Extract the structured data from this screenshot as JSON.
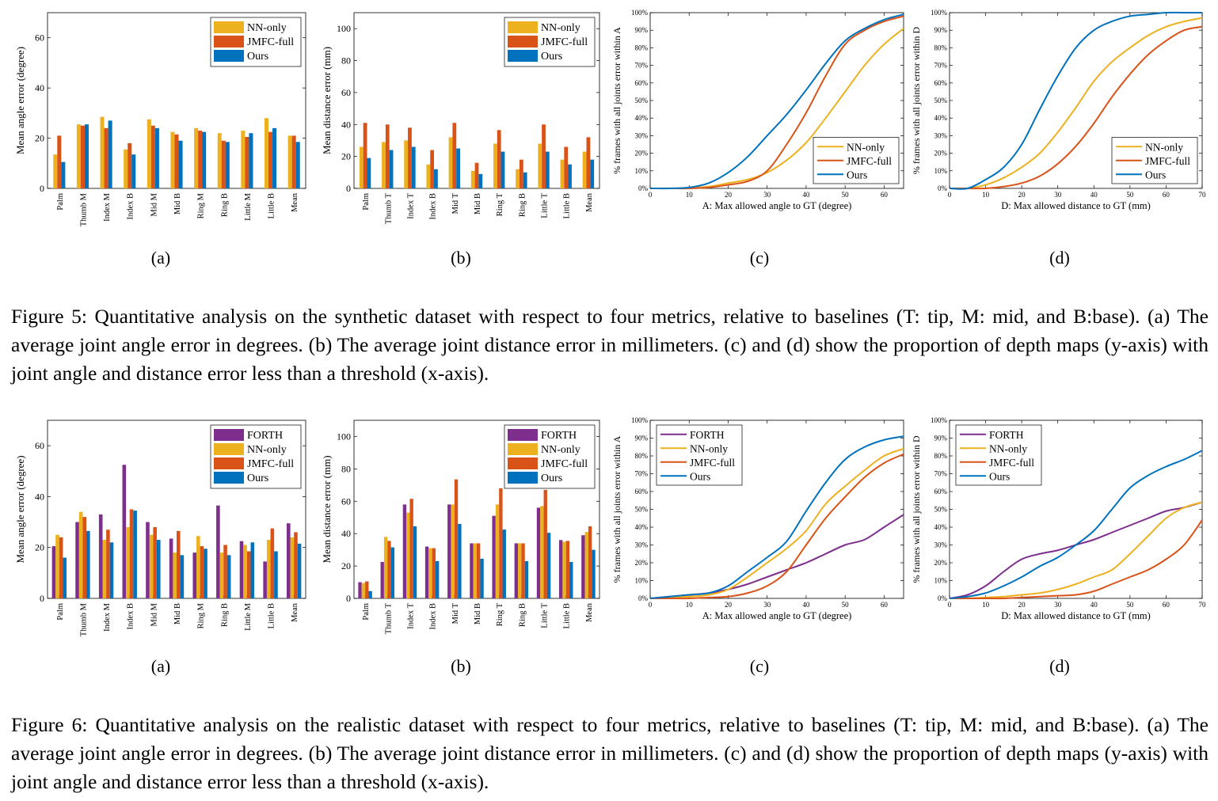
{
  "colors": {
    "FORTH": "#7e2f8e",
    "NN-only": "#edb120",
    "JMFC-full": "#d95319",
    "Ours": "#0072bd"
  },
  "figures": [
    {
      "caption": "Figure 5: Quantitative analysis on the synthetic dataset with respect to four metrics, relative to baselines (T: tip, M: mid, and B:base). (a) The average joint angle error in degrees. (b) The average joint distance error in millimeters. (c) and (d) show the proportion of depth maps (y-axis) with joint angle and distance error less than a threshold (x-axis).",
      "panels": [
        {
          "sublabel": "(a)",
          "chart_data": {
            "type": "bar",
            "xlabel": "",
            "ylabel": "Mean angle error (degree)",
            "ylim": [
              0,
              70
            ],
            "yticks": [
              0,
              20,
              40,
              60
            ],
            "categories": [
              "Palm",
              "Thumb M",
              "Index M",
              "Index B",
              "Mid M",
              "Mid B",
              "Ring M",
              "Ring B",
              "Little M",
              "Little B",
              "Mean"
            ],
            "legend_position": "top-right",
            "series": [
              {
                "name": "NN-only",
                "values": [
                  13.5,
                  25.5,
                  28.5,
                  15.5,
                  27.5,
                  22.5,
                  24,
                  22,
                  23,
                  28,
                  21
                ]
              },
              {
                "name": "JMFC-full",
                "values": [
                  21,
                  25,
                  24,
                  18,
                  25,
                  21.5,
                  23,
                  19,
                  20.5,
                  22.5,
                  21
                ]
              },
              {
                "name": "Ours",
                "values": [
                  10.5,
                  25.5,
                  27,
                  13.5,
                  24,
                  19,
                  22.5,
                  18.5,
                  22,
                  24,
                  18.5
                ]
              }
            ]
          }
        },
        {
          "sublabel": "(b)",
          "chart_data": {
            "type": "bar",
            "xlabel": "",
            "ylabel": "Mean distance error (mm)",
            "ylim": [
              0,
              110
            ],
            "yticks": [
              0,
              20,
              40,
              60,
              80,
              100
            ],
            "categories": [
              "Palm",
              "Thumb T",
              "Index T",
              "Index B",
              "Mid T",
              "Mid B",
              "Ring T",
              "Ring B",
              "Little T",
              "Little B",
              "Mean"
            ],
            "legend_position": "top-right",
            "series": [
              {
                "name": "NN-only",
                "values": [
                  26,
                  29,
                  30,
                  15,
                  32,
                  11,
                  28,
                  12,
                  28,
                  18,
                  23
                ]
              },
              {
                "name": "JMFC-full",
                "values": [
                  41,
                  40,
                  38,
                  24,
                  41,
                  16,
                  36.5,
                  18,
                  40,
                  26,
                  32
                ]
              },
              {
                "name": "Ours",
                "values": [
                  19,
                  24,
                  26,
                  12,
                  25,
                  9,
                  23,
                  10,
                  23,
                  15,
                  18
                ]
              }
            ]
          }
        },
        {
          "sublabel": "(c)",
          "chart_data": {
            "type": "line",
            "xlabel": "A: Max allowed angle to GT (degree)",
            "ylabel": "% frames with all joints error within A",
            "xlim": [
              0,
              65
            ],
            "ylim": [
              0,
              100
            ],
            "xticks": [
              0,
              10,
              20,
              30,
              40,
              50,
              60
            ],
            "yticks": [
              "0%",
              "10%",
              "20%",
              "30%",
              "40%",
              "50%",
              "60%",
              "70%",
              "80%",
              "90%",
              "100%"
            ],
            "legend_position": "bottom-right",
            "x": [
              0,
              5,
              10,
              15,
              20,
              25,
              30,
              35,
              40,
              45,
              50,
              55,
              60,
              65
            ],
            "series": [
              {
                "name": "NN-only",
                "values": [
                  0,
                  0,
                  0.2,
                  1,
                  3,
                  5,
                  9,
                  16,
                  26,
                  40,
                  55,
                  70,
                  82,
                  91
                ]
              },
              {
                "name": "JMFC-full",
                "values": [
                  0,
                  0,
                  0,
                  0.5,
                  2,
                  4,
                  10,
                  25,
                  43,
                  64,
                  82,
                  90,
                  95,
                  98
                ]
              },
              {
                "name": "Ours",
                "values": [
                  0,
                  0,
                  0.5,
                  3,
                  9,
                  18,
                  30,
                  42,
                  56,
                  71,
                  84,
                  91,
                  96,
                  99
                ]
              }
            ]
          }
        },
        {
          "sublabel": "(d)",
          "chart_data": {
            "type": "line",
            "xlabel": "D: Max allowed distance to GT (mm)",
            "ylabel": "% frames with all joints error within D",
            "xlim": [
              0,
              70
            ],
            "ylim": [
              0,
              100
            ],
            "xticks": [
              0,
              10,
              20,
              30,
              40,
              50,
              60,
              70
            ],
            "yticks": [
              "0%",
              "10%",
              "20%",
              "30%",
              "40%",
              "50%",
              "60%",
              "70%",
              "80%",
              "90%",
              "100%"
            ],
            "legend_position": "bottom-right",
            "x": [
              0,
              5,
              10,
              15,
              20,
              25,
              30,
              35,
              40,
              45,
              50,
              55,
              60,
              65,
              70
            ],
            "series": [
              {
                "name": "NN-only",
                "values": [
                  0,
                  0,
                  2,
                  6,
                  12,
                  20,
                  32,
                  46,
                  61,
                  72,
                  80,
                  87,
                  92,
                  95,
                  97
                ]
              },
              {
                "name": "JMFC-full",
                "values": [
                  0,
                  0,
                  0,
                  1,
                  3,
                  7,
                  14,
                  24,
                  37,
                  52,
                  65,
                  76,
                  84,
                  90,
                  92
                ]
              },
              {
                "name": "Ours",
                "values": [
                  0,
                  0,
                  5,
                  12,
                  25,
                  45,
                  64,
                  80,
                  90,
                  95,
                  98,
                  99,
                  100,
                  100,
                  100
                ]
              }
            ]
          }
        }
      ]
    },
    {
      "caption": "Figure 6: Quantitative analysis on the realistic dataset with respect to four metrics, relative to baselines (T: tip, M: mid, and B:base). (a) The average joint angle error in degrees. (b) The average joint distance error in millimeters. (c) and (d) show the proportion of depth maps (y-axis) with joint angle and distance error less than a threshold (x-axis).",
      "panels": [
        {
          "sublabel": "(a)",
          "chart_data": {
            "type": "bar",
            "xlabel": "",
            "ylabel": "Mean angle error (degree)",
            "ylim": [
              0,
              70
            ],
            "yticks": [
              0,
              20,
              40,
              60
            ],
            "categories": [
              "Palm",
              "Thumb M",
              "Index M",
              "Index B",
              "Mid M",
              "Mid B",
              "Ring M",
              "Ring B",
              "Little M",
              "Little B",
              "Mean"
            ],
            "legend_position": "top-right",
            "series": [
              {
                "name": "FORTH",
                "values": [
                  20.5,
                  30,
                  33,
                  52.5,
                  30,
                  23.5,
                  18,
                  36.5,
                  22.5,
                  14.5,
                  29.5
                ]
              },
              {
                "name": "NN-only",
                "values": [
                  25,
                  34,
                  23,
                  28,
                  25,
                  18,
                  24.5,
                  18,
                  21,
                  23,
                  24
                ]
              },
              {
                "name": "JMFC-full",
                "values": [
                  24,
                  32,
                  27,
                  35,
                  28,
                  26.5,
                  20.5,
                  21,
                  18.5,
                  27.5,
                  26
                ]
              },
              {
                "name": "Ours",
                "values": [
                  16,
                  26.5,
                  22,
                  34.5,
                  23,
                  17,
                  19.5,
                  17,
                  22,
                  18.5,
                  21.5
                ]
              }
            ]
          }
        },
        {
          "sublabel": "(b)",
          "chart_data": {
            "type": "bar",
            "xlabel": "",
            "ylabel": "Mean distance error (mm)",
            "ylim": [
              0,
              110
            ],
            "yticks": [
              0,
              20,
              40,
              60,
              80,
              100
            ],
            "categories": [
              "Palm",
              "Thumb T",
              "Index T",
              "Index B",
              "Mid T",
              "Mid B",
              "Ring T",
              "Ring B",
              "Little T",
              "Little B",
              "Mean"
            ],
            "legend_position": "top-right",
            "series": [
              {
                "name": "FORTH",
                "values": [
                  10,
                  22.5,
                  58,
                  32,
                  58,
                  34,
                  51,
                  34,
                  56,
                  36,
                  39
                ]
              },
              {
                "name": "NN-only",
                "values": [
                  9.5,
                  38,
                  53,
                  31,
                  58,
                  34,
                  58,
                  34,
                  57,
                  35,
                  41
                ]
              },
              {
                "name": "JMFC-full",
                "values": [
                  10.5,
                  35.5,
                  61.5,
                  31,
                  73.5,
                  34,
                  68,
                  34,
                  67,
                  35.5,
                  44.5
                ]
              },
              {
                "name": "Ours",
                "values": [
                  4.5,
                  31.5,
                  44.5,
                  23,
                  46,
                  24.5,
                  42.5,
                  23,
                  40.5,
                  22.5,
                  30
                ]
              }
            ]
          }
        },
        {
          "sublabel": "(c)",
          "chart_data": {
            "type": "line",
            "xlabel": "A: Max allowed angle to GT (degree)",
            "ylabel": "% frames with all joints error within A",
            "xlim": [
              0,
              65
            ],
            "ylim": [
              0,
              100
            ],
            "xticks": [
              0,
              10,
              20,
              30,
              40,
              50,
              60
            ],
            "yticks": [
              "0%",
              "10%",
              "20%",
              "30%",
              "40%",
              "50%",
              "60%",
              "70%",
              "80%",
              "90%",
              "100%"
            ],
            "legend_position": "top-left",
            "x": [
              0,
              5,
              10,
              15,
              20,
              25,
              30,
              35,
              40,
              45,
              50,
              55,
              60,
              65
            ],
            "series": [
              {
                "name": "FORTH",
                "values": [
                  0,
                  1,
                  2,
                  3,
                  5,
                  8,
                  12,
                  16,
                  20,
                  25,
                  30,
                  33,
                  40,
                  47
                ]
              },
              {
                "name": "NN-only",
                "values": [
                  0,
                  0.5,
                  1,
                  2,
                  5,
                  12,
                  20,
                  28,
                  38,
                  53,
                  63,
                  72,
                  80,
                  84
                ]
              },
              {
                "name": "JMFC-full",
                "values": [
                  0,
                  0,
                  0,
                  0.5,
                  1,
                  3,
                  7,
                  15,
                  30,
                  45,
                  57,
                  68,
                  76,
                  81
                ]
              },
              {
                "name": "Ours",
                "values": [
                  0,
                  1,
                  2,
                  3,
                  7,
                  15,
                  23,
                  32,
                  49,
                  65,
                  78,
                  85,
                  89,
                  91
                ]
              }
            ]
          }
        },
        {
          "sublabel": "(d)",
          "chart_data": {
            "type": "line",
            "xlabel": "D: Max allowed distance to GT (mm)",
            "ylabel": "% frames with all joints error within D",
            "xlim": [
              0,
              70
            ],
            "ylim": [
              0,
              100
            ],
            "xticks": [
              0,
              10,
              20,
              30,
              40,
              50,
              60,
              70
            ],
            "yticks": [
              "0%",
              "10%",
              "20%",
              "30%",
              "40%",
              "50%",
              "60%",
              "70%",
              "80%",
              "90%",
              "100%"
            ],
            "legend_position": "top-left",
            "x": [
              0,
              5,
              10,
              15,
              20,
              25,
              30,
              35,
              40,
              45,
              50,
              55,
              60,
              65,
              70
            ],
            "series": [
              {
                "name": "FORTH",
                "values": [
                  0,
                  2,
                  7,
                  15,
                  22,
                  25,
                  27,
                  30,
                  33,
                  37,
                  41,
                  45,
                  49,
                  51,
                  54
                ]
              },
              {
                "name": "NN-only",
                "values": [
                  0,
                  0,
                  0.5,
                  1,
                  2,
                  3,
                  5,
                  8,
                  12,
                  16,
                  25,
                  35,
                  45,
                  51,
                  54
                ]
              },
              {
                "name": "JMFC-full",
                "values": [
                  0,
                  0,
                  0,
                  0,
                  0.5,
                  1,
                  1.5,
                  2,
                  4,
                  8,
                  12,
                  16,
                  22,
                  30,
                  44
                ]
              },
              {
                "name": "Ours",
                "values": [
                  0,
                  1,
                  3,
                  7,
                  12,
                  18,
                  23,
                  30,
                  38,
                  50,
                  62,
                  69,
                  74,
                  78,
                  83
                ]
              }
            ]
          }
        }
      ]
    }
  ]
}
